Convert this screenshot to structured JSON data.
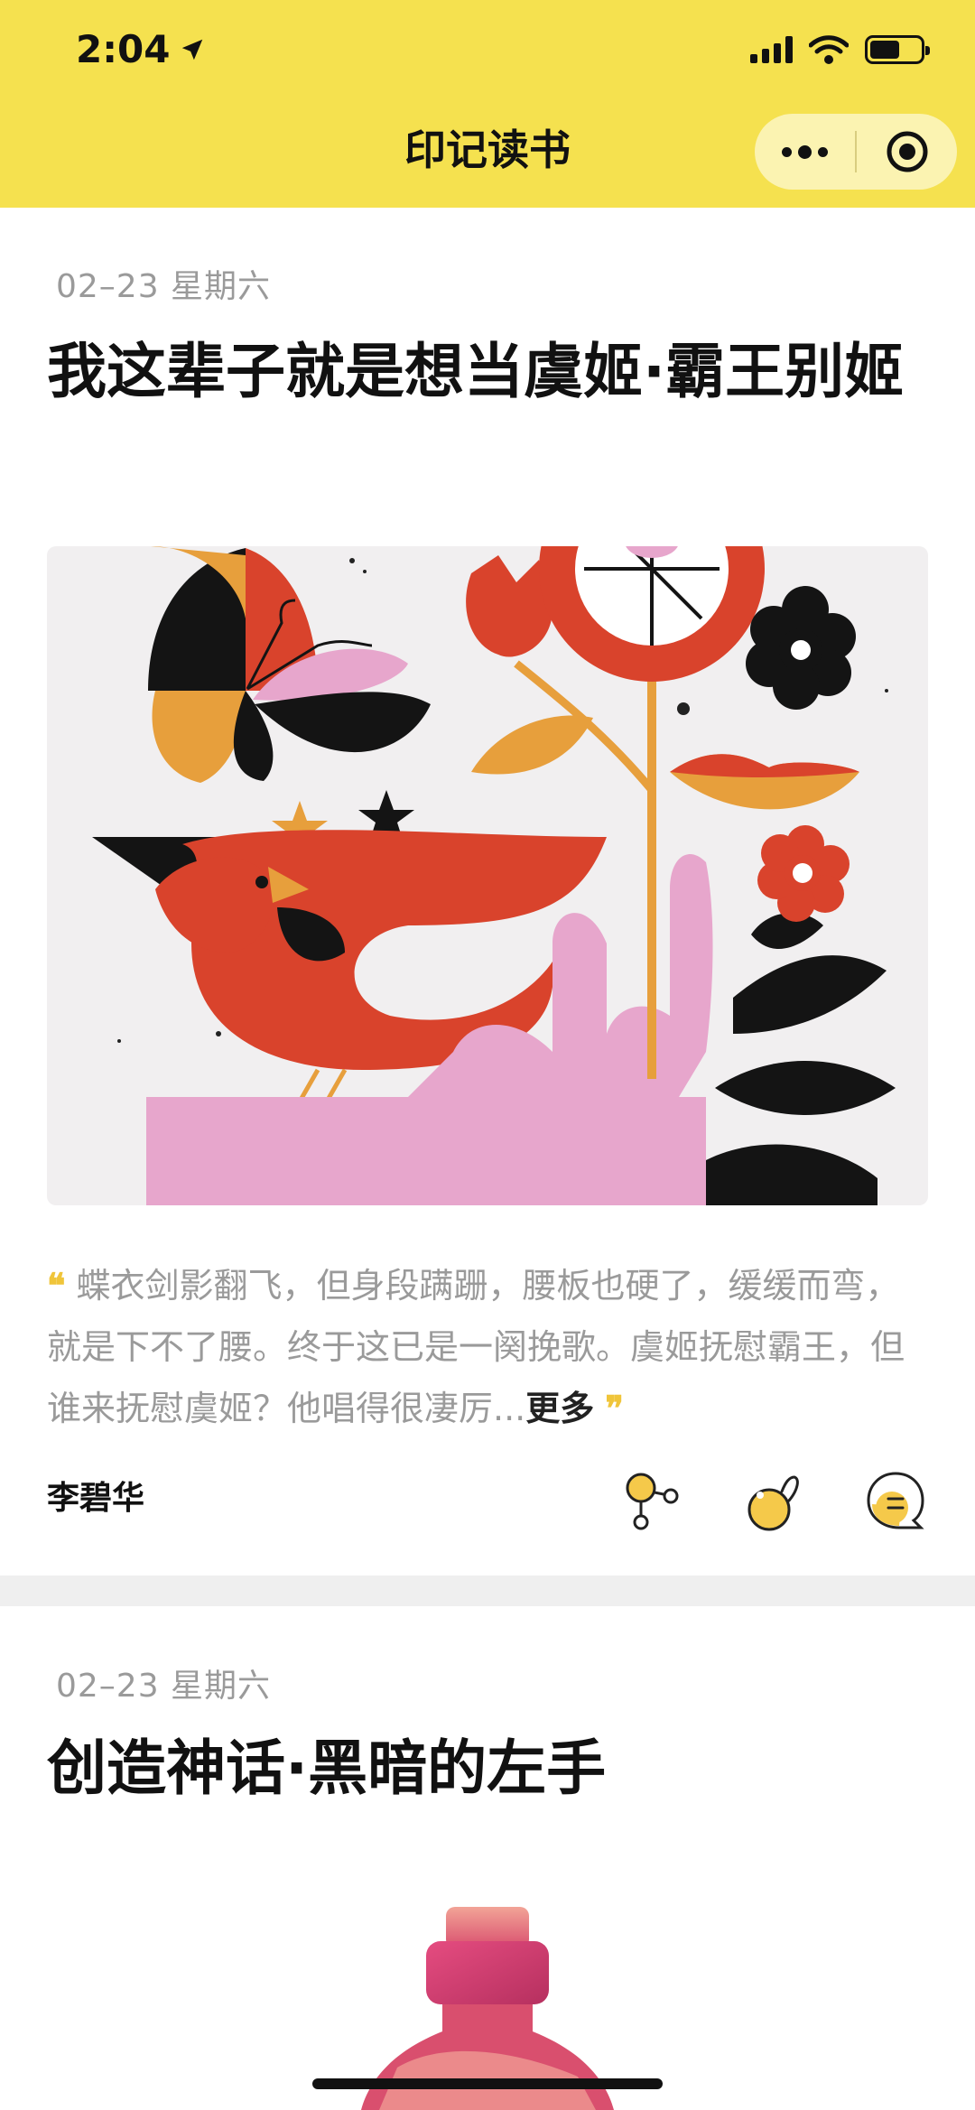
{
  "status_bar": {
    "time": "2:04"
  },
  "nav": {
    "title": "印记读书",
    "more_icon": "more-dots-icon",
    "close_icon": "target-circle-icon"
  },
  "feed": [
    {
      "date": "02–23 星期六",
      "title": "我这辈子就是想当虞姬·霸王别姬",
      "quote_open": "❝",
      "quote_text": "蝶衣剑影翻飞，但身段蹒跚，腰板也硬了，缓缓而弯，就是下不了腰。终于这已是一阕挽歌。虞姬抚慰霸王，但谁来抚慰虞姬？他唱得很凄厉...",
      "more_label": "更多",
      "quote_close": "❞",
      "author": "李碧华",
      "actions": [
        "share-icon",
        "like-icon",
        "comment-icon"
      ]
    },
    {
      "date": "02–23 星期六",
      "title": "创造神话·黑暗的左手"
    }
  ],
  "colors": {
    "accent": "#f5e14f",
    "quote_mark": "#f0c53a",
    "red": "#d9432c",
    "pink": "#e7a6cc",
    "orange": "#e79f3c"
  }
}
